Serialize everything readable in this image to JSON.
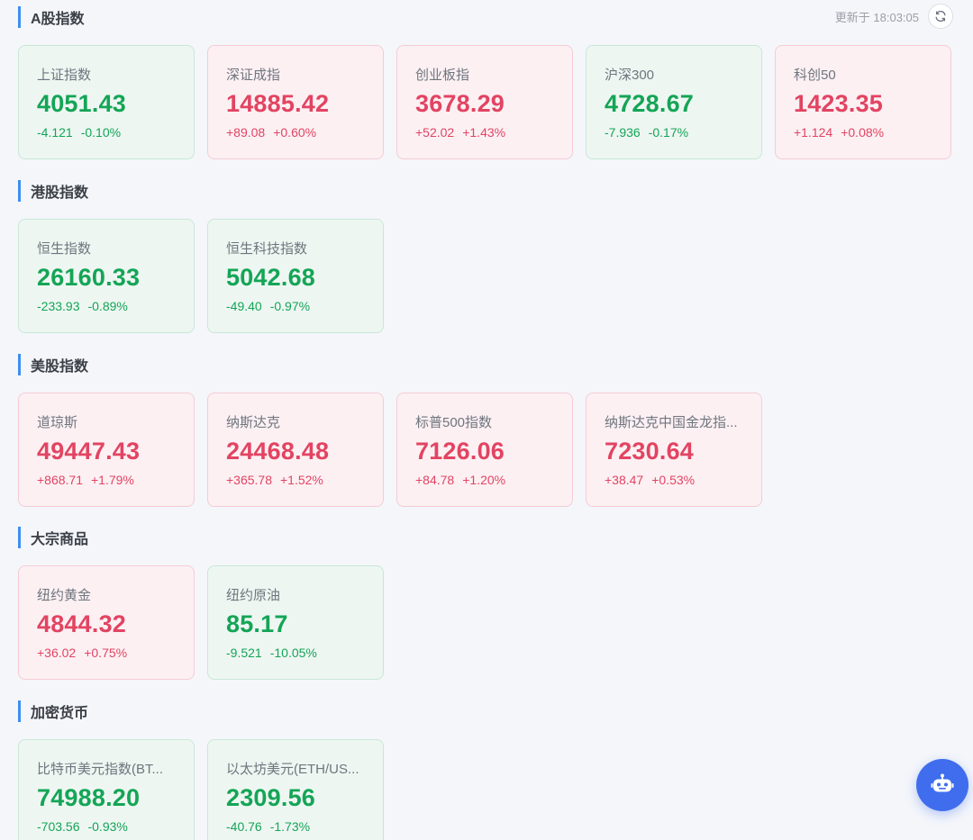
{
  "header": {
    "update_text": "更新于 18:03:05",
    "refresh_icon": "refresh-icon"
  },
  "sections": [
    {
      "title": "A股指数",
      "cards": [
        {
          "name": "上证指数",
          "value": "4051.43",
          "change": "-4.121",
          "pct": "-0.10%",
          "trend": "down"
        },
        {
          "name": "深证成指",
          "value": "14885.42",
          "change": "+89.08",
          "pct": "+0.60%",
          "trend": "up"
        },
        {
          "name": "创业板指",
          "value": "3678.29",
          "change": "+52.02",
          "pct": "+1.43%",
          "trend": "up"
        },
        {
          "name": "沪深300",
          "value": "4728.67",
          "change": "-7.936",
          "pct": "-0.17%",
          "trend": "down"
        },
        {
          "name": "科创50",
          "value": "1423.35",
          "change": "+1.124",
          "pct": "+0.08%",
          "trend": "up"
        }
      ]
    },
    {
      "title": "港股指数",
      "cards": [
        {
          "name": "恒生指数",
          "value": "26160.33",
          "change": "-233.93",
          "pct": "-0.89%",
          "trend": "down"
        },
        {
          "name": "恒生科技指数",
          "value": "5042.68",
          "change": "-49.40",
          "pct": "-0.97%",
          "trend": "down"
        }
      ]
    },
    {
      "title": "美股指数",
      "cards": [
        {
          "name": "道琼斯",
          "value": "49447.43",
          "change": "+868.71",
          "pct": "+1.79%",
          "trend": "up"
        },
        {
          "name": "纳斯达克",
          "value": "24468.48",
          "change": "+365.78",
          "pct": "+1.52%",
          "trend": "up"
        },
        {
          "name": "标普500指数",
          "value": "7126.06",
          "change": "+84.78",
          "pct": "+1.20%",
          "trend": "up"
        },
        {
          "name": "纳斯达克中国金龙指...",
          "value": "7230.64",
          "change": "+38.47",
          "pct": "+0.53%",
          "trend": "up"
        }
      ]
    },
    {
      "title": "大宗商品",
      "cards": [
        {
          "name": "纽约黄金",
          "value": "4844.32",
          "change": "+36.02",
          "pct": "+0.75%",
          "trend": "up"
        },
        {
          "name": "纽约原油",
          "value": "85.17",
          "change": "-9.521",
          "pct": "-10.05%",
          "trend": "down"
        }
      ]
    },
    {
      "title": "加密货币",
      "cards": [
        {
          "name": "比特币美元指数(BT...",
          "value": "74988.20",
          "change": "-703.56",
          "pct": "-0.93%",
          "trend": "down"
        },
        {
          "name": "以太坊美元(ETH/US...",
          "value": "2309.56",
          "change": "-40.76",
          "pct": "-1.73%",
          "trend": "down"
        }
      ]
    }
  ],
  "assistant": {
    "icon": "robot-icon"
  },
  "colors": {
    "up": "#e24462",
    "down": "#14a556",
    "accent": "#3d8ef0",
    "assistant_bg": "#3f6ded"
  }
}
